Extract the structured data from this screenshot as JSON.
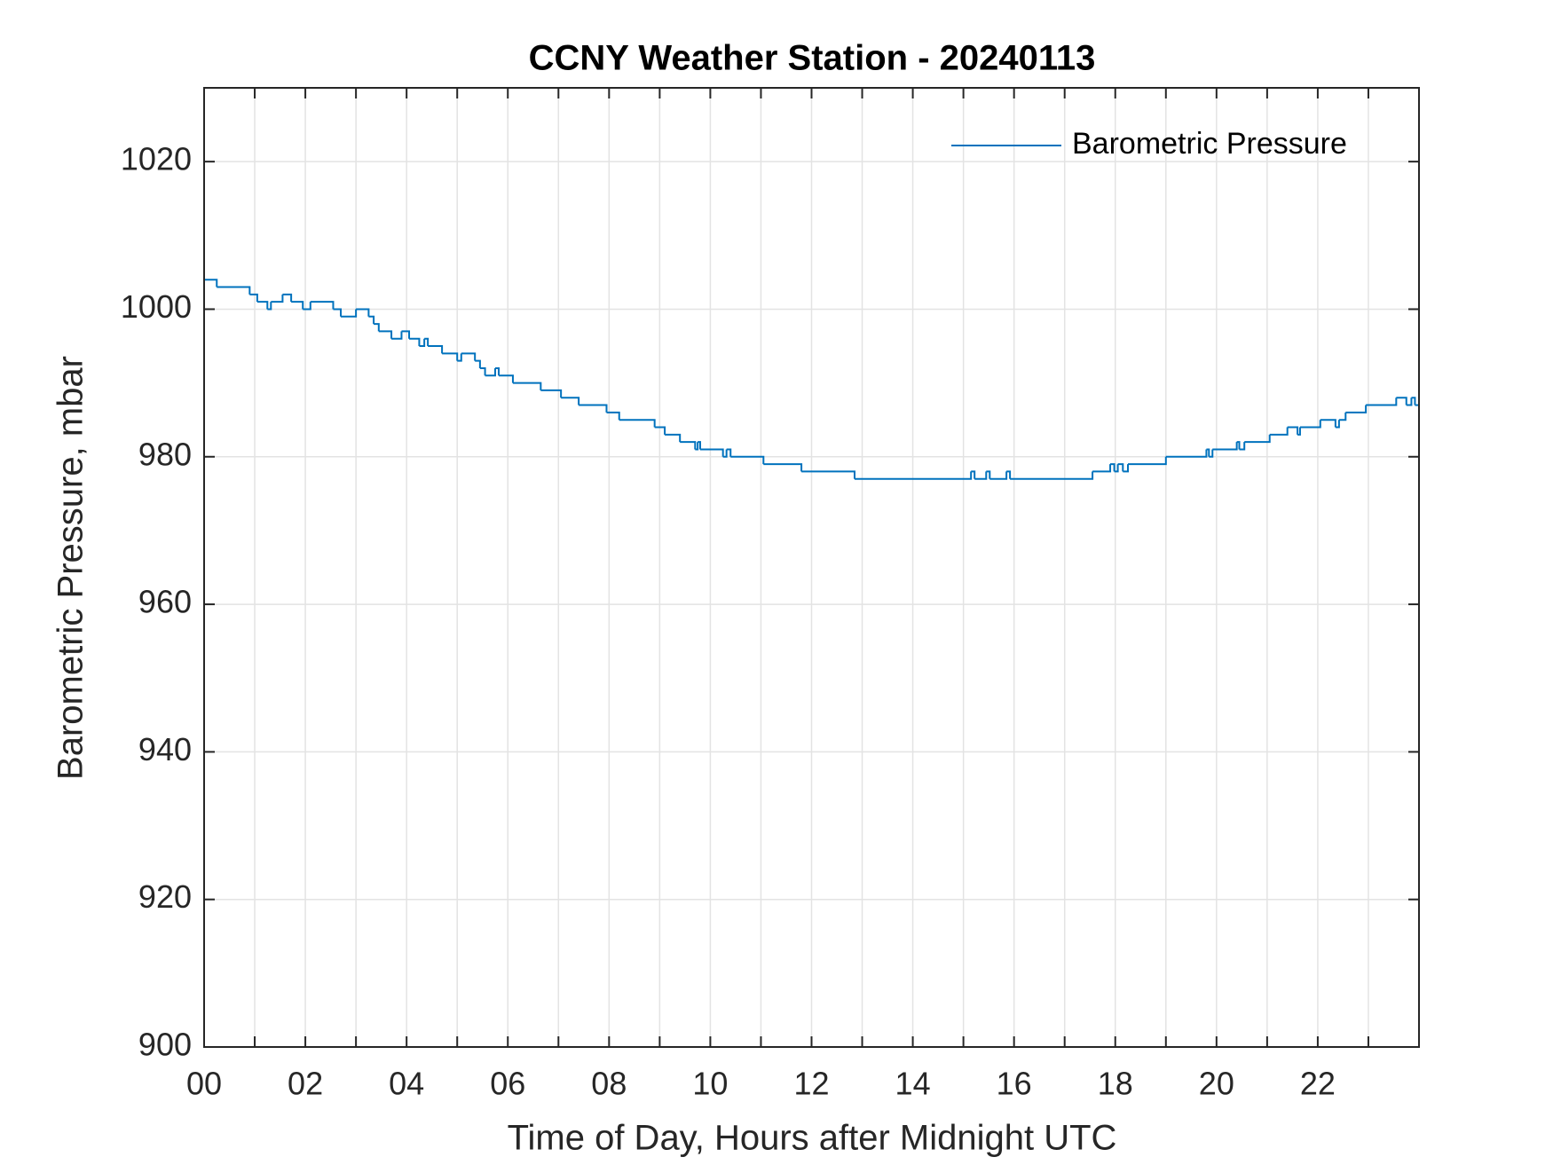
{
  "chart_data": {
    "type": "line",
    "title": "CCNY Weather Station - 20240113",
    "xlabel": "Time of Day, Hours after Midnight UTC",
    "ylabel": "Barometric Pressure, mbar",
    "xlim": [
      0,
      24
    ],
    "ylim": [
      900,
      1030
    ],
    "xticks": [
      {
        "value": 0,
        "label": "00"
      },
      {
        "value": 2,
        "label": "02"
      },
      {
        "value": 4,
        "label": "04"
      },
      {
        "value": 6,
        "label": "06"
      },
      {
        "value": 8,
        "label": "08"
      },
      {
        "value": 10,
        "label": "10"
      },
      {
        "value": 12,
        "label": "12"
      },
      {
        "value": 14,
        "label": "14"
      },
      {
        "value": 16,
        "label": "16"
      },
      {
        "value": 18,
        "label": "18"
      },
      {
        "value": 20,
        "label": "20"
      },
      {
        "value": 22,
        "label": "22"
      }
    ],
    "xminorticks": [
      1,
      3,
      5,
      7,
      9,
      11,
      13,
      15,
      17,
      19,
      21,
      23
    ],
    "yticks": [
      900,
      920,
      940,
      960,
      980,
      1000,
      1020
    ],
    "grid": true,
    "legend": "upper right",
    "step": "post",
    "series": [
      {
        "name": "Barometric Pressure",
        "color": "#0072bd",
        "x": [
          0,
          0.25,
          0.9,
          1.05,
          1.25,
          1.32,
          1.55,
          1.72,
          1.95,
          2.1,
          2.55,
          2.7,
          3.0,
          3.25,
          3.35,
          3.45,
          3.7,
          3.9,
          4.05,
          4.25,
          4.35,
          4.42,
          4.7,
          5.0,
          5.08,
          5.35,
          5.45,
          5.55,
          5.75,
          5.82,
          6.1,
          6.65,
          7.05,
          7.4,
          7.95,
          8.2,
          8.9,
          9.1,
          9.4,
          9.7,
          9.75,
          9.8,
          10.25,
          10.32,
          10.4,
          11.05,
          11.8,
          12.85,
          15.15,
          15.22,
          15.45,
          15.52,
          15.85,
          15.92,
          17.55,
          17.9,
          17.98,
          18.05,
          18.15,
          18.25,
          19.0,
          19.8,
          19.85,
          19.92,
          20.4,
          20.45,
          20.55,
          21.05,
          21.4,
          21.6,
          21.65,
          22.05,
          22.35,
          22.42,
          22.55,
          22.95,
          23.55,
          23.75,
          23.85,
          23.92
        ],
        "values": [
          1004,
          1003,
          1002,
          1001,
          1000,
          1001,
          1002,
          1001,
          1000,
          1001,
          1000,
          999,
          1000,
          999,
          998,
          997,
          996,
          997,
          996,
          995,
          996,
          995,
          994,
          993,
          994,
          993,
          992,
          991,
          992,
          991,
          990,
          989,
          988,
          987,
          986,
          985,
          984,
          983,
          982,
          981,
          982,
          981,
          980,
          981,
          980,
          979,
          978,
          977,
          978,
          977,
          978,
          977,
          978,
          977,
          978,
          979,
          978,
          979,
          978,
          979,
          980,
          981,
          980,
          981,
          982,
          981,
          982,
          983,
          984,
          983,
          984,
          985,
          984,
          985,
          986,
          987,
          988,
          987,
          988,
          987
        ]
      }
    ]
  }
}
